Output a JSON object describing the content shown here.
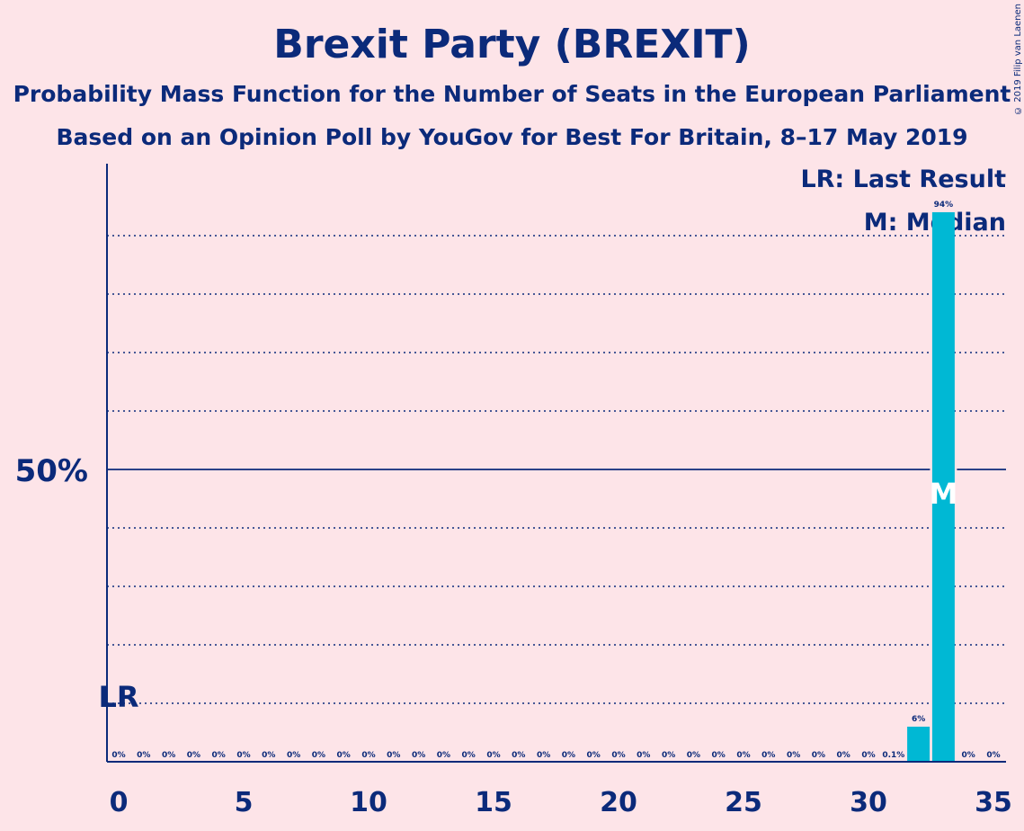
{
  "title": "Brexit Party (BREXIT)",
  "subtitle1": "Probability Mass Function for the Number of Seats in the European Parliament",
  "subtitle2": "Based on an Opinion Poll by YouGov for Best For Britain, 8–17 May 2019",
  "copyright": "© 2019 Filip van Laenen",
  "legend": {
    "lr": "LR: Last Result",
    "m": "M: Median"
  },
  "colors": {
    "background": "#fde4e8",
    "text": "#0b2a7a",
    "bar": "#00b8d4"
  },
  "chart_data": {
    "type": "bar",
    "x": [
      0,
      1,
      2,
      3,
      4,
      5,
      6,
      7,
      8,
      9,
      10,
      11,
      12,
      13,
      14,
      15,
      16,
      17,
      18,
      19,
      20,
      21,
      22,
      23,
      24,
      25,
      26,
      27,
      28,
      29,
      30,
      31,
      32,
      33,
      34,
      35
    ],
    "values": [
      0,
      0,
      0,
      0,
      0,
      0,
      0,
      0,
      0,
      0,
      0,
      0,
      0,
      0,
      0,
      0,
      0,
      0,
      0,
      0,
      0,
      0,
      0,
      0,
      0,
      0,
      0,
      0,
      0,
      0,
      0,
      0.1,
      6,
      94,
      0,
      0
    ],
    "labels": [
      "0%",
      "0%",
      "0%",
      "0%",
      "0%",
      "0%",
      "0%",
      "0%",
      "0%",
      "0%",
      "0%",
      "0%",
      "0%",
      "0%",
      "0%",
      "0%",
      "0%",
      "0%",
      "0%",
      "0%",
      "0%",
      "0%",
      "0%",
      "0%",
      "0%",
      "0%",
      "0%",
      "0%",
      "0%",
      "0%",
      "0%",
      "0.1%",
      "6%",
      "94%",
      "0%",
      "0%"
    ],
    "xticks": [
      0,
      5,
      10,
      15,
      20,
      25,
      30,
      35
    ],
    "ytick_label": "50%",
    "ylim": [
      0,
      100
    ],
    "gridlines": [
      10,
      20,
      30,
      40,
      60,
      70,
      80,
      90
    ],
    "median": 33,
    "median_label": "M",
    "last_result": 0,
    "last_result_label": "LR"
  }
}
